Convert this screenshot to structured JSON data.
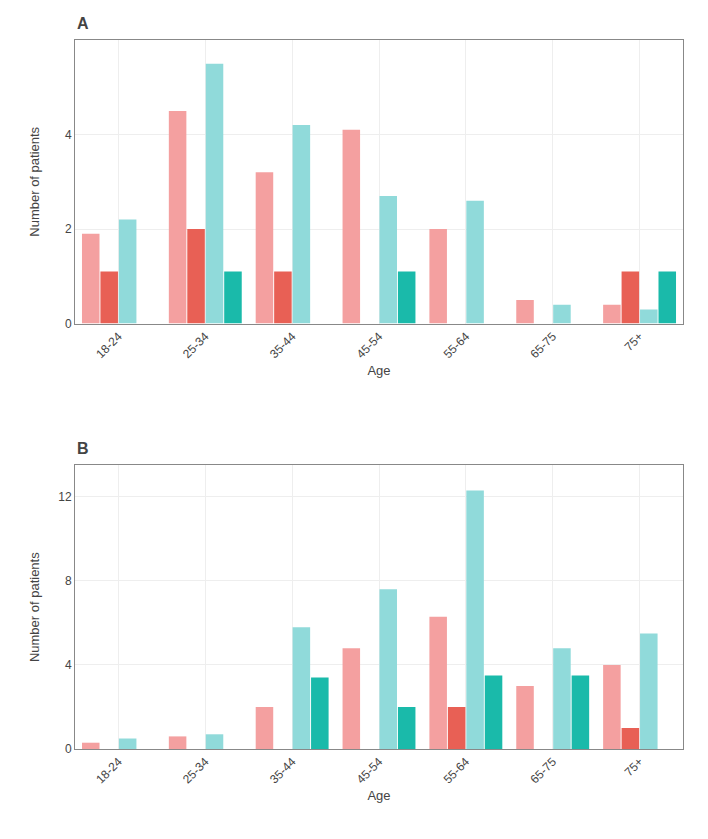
{
  "chart_data": [
    {
      "type": "bar",
      "title": "A",
      "xlabel": "Age",
      "ylabel": "Number of patients",
      "categories": [
        "18-24",
        "25-34",
        "35-44",
        "45-54",
        "55-64",
        "65-75",
        "75+"
      ],
      "series": [
        {
          "color": "#F4A0A0",
          "values": [
            1.9,
            4.5,
            3.2,
            4.1,
            2.0,
            0.5,
            0.4
          ]
        },
        {
          "color": "#E86055",
          "values": [
            1.1,
            2.0,
            1.1,
            0.0,
            0.0,
            0.0,
            1.1
          ]
        },
        {
          "color": "#90DADA",
          "values": [
            2.2,
            5.5,
            4.2,
            2.7,
            2.6,
            0.4,
            0.3
          ]
        },
        {
          "color": "#1ABAAA",
          "values": [
            0.0,
            1.1,
            0.0,
            1.1,
            0.0,
            0.0,
            1.1
          ]
        }
      ],
      "ylim": [
        0,
        6.0
      ],
      "yticks": [
        0,
        2,
        4
      ],
      "grid": true
    },
    {
      "type": "bar",
      "title": "B",
      "xlabel": "Age",
      "ylabel": "Number of patients",
      "categories": [
        "18-24",
        "25-34",
        "35-44",
        "45-54",
        "55-64",
        "65-75",
        "75+"
      ],
      "series": [
        {
          "color": "#F4A0A0",
          "values": [
            0.3,
            0.6,
            2.0,
            4.8,
            6.3,
            3.0,
            4.0
          ]
        },
        {
          "color": "#E86055",
          "values": [
            0.0,
            0.0,
            0.0,
            0.0,
            2.0,
            0.0,
            1.0
          ]
        },
        {
          "color": "#90DADA",
          "values": [
            0.5,
            0.7,
            5.8,
            7.6,
            12.3,
            4.8,
            5.5
          ]
        },
        {
          "color": "#1ABAAA",
          "values": [
            0.0,
            0.0,
            3.4,
            2.0,
            3.5,
            3.5,
            0.0
          ]
        }
      ],
      "ylim": [
        0,
        13.5
      ],
      "yticks": [
        0,
        4,
        8,
        12
      ],
      "grid": true
    }
  ]
}
